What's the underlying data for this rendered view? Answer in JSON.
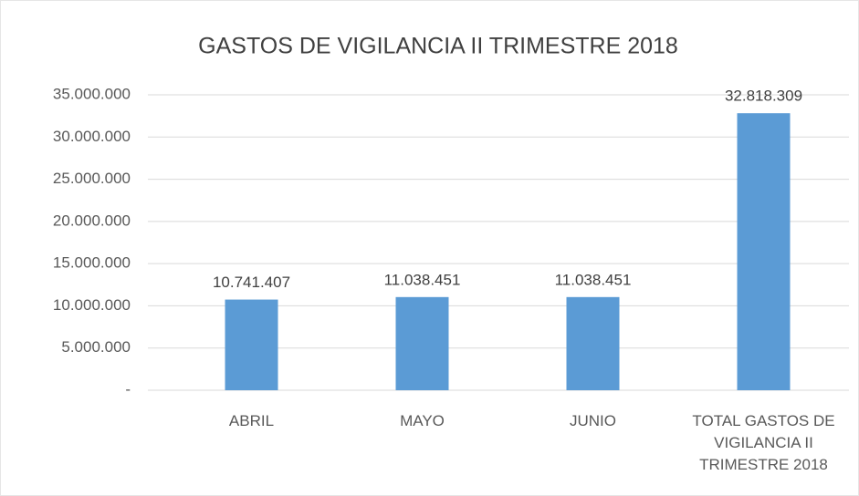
{
  "chart_data": {
    "type": "bar",
    "title": "GASTOS DE VIGILANCIA II TRIMESTRE 2018",
    "categories": [
      "ABRIL",
      "MAYO",
      "JUNIO",
      "TOTAL GASTOS DE VIGILANCIA II TRIMESTRE 2018"
    ],
    "values": [
      10741407,
      11038451,
      11038451,
      32818309
    ],
    "value_labels": [
      "10.741.407",
      "11.038.451",
      "11.038.451",
      "32.818.309"
    ],
    "color": "#5b9bd5",
    "ylim": [
      0,
      35000000
    ],
    "yticks": [
      {
        "value": 0,
        "label": "-"
      },
      {
        "value": 5000000,
        "label": "5.000.000"
      },
      {
        "value": 10000000,
        "label": "10.000.000"
      },
      {
        "value": 15000000,
        "label": "15.000.000"
      },
      {
        "value": 20000000,
        "label": "20.000.000"
      },
      {
        "value": 25000000,
        "label": "25.000.000"
      },
      {
        "value": 30000000,
        "label": "30.000.000"
      },
      {
        "value": 35000000,
        "label": "35.000.000"
      }
    ],
    "grid": true
  }
}
